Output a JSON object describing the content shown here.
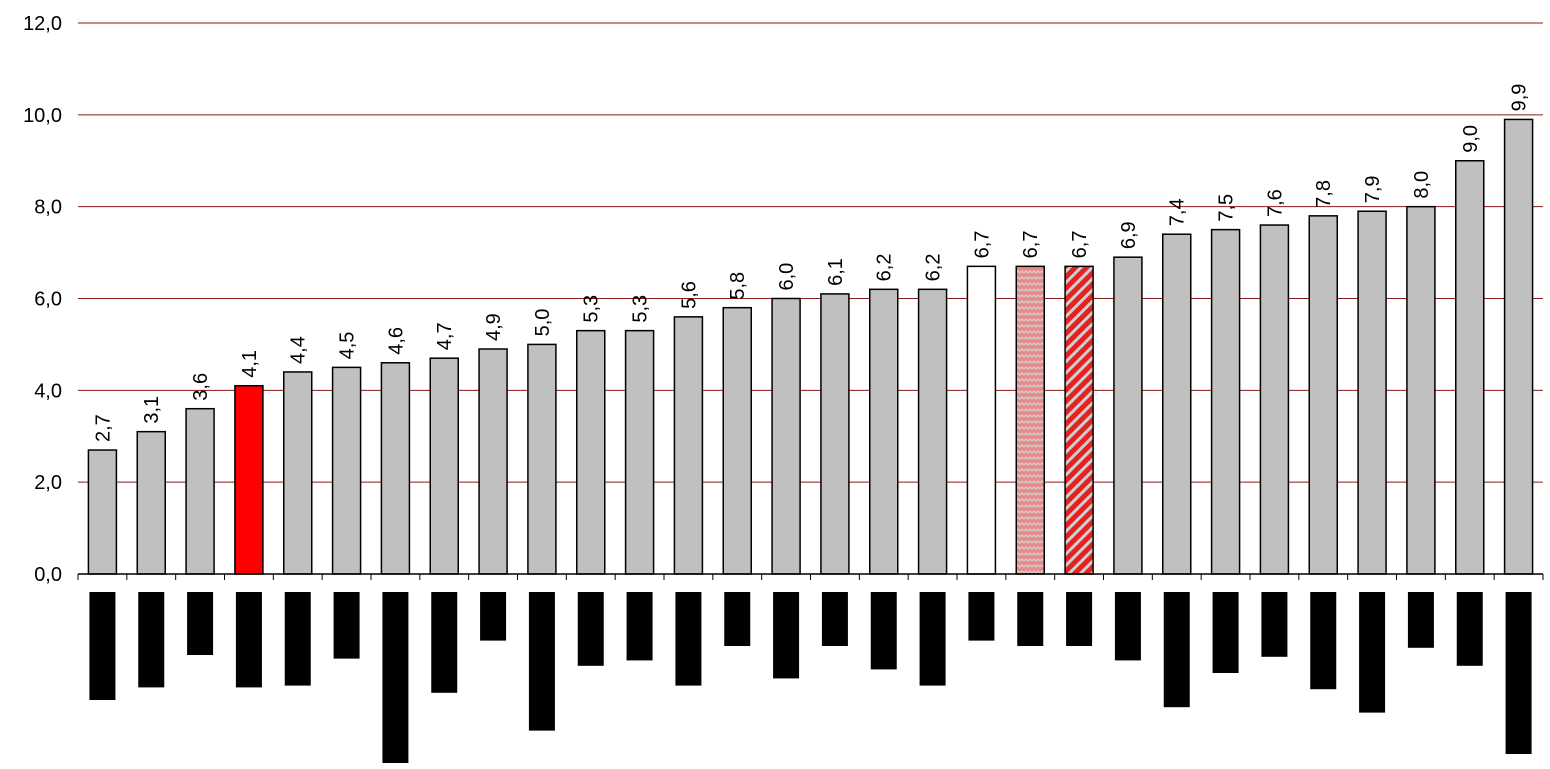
{
  "chart_data": {
    "type": "bar",
    "title": "",
    "xlabel": "",
    "ylabel": "",
    "ylim": [
      0,
      12
    ],
    "y_ticks": [
      0,
      2,
      4,
      6,
      8,
      10,
      12
    ],
    "y_tick_labels": [
      "0,0",
      "2,0",
      "4,0",
      "6,0",
      "8,0",
      "10,0",
      "12,0"
    ],
    "grid": true,
    "colors": {
      "default": "#c0c0c0",
      "red": "#ff0000",
      "white": "#ffffff",
      "hatch_red": "#e32222",
      "hatch_light": "#cfcfcf",
      "grid": "#8b1a1a",
      "outline": "#000000",
      "dark_block": "#000000"
    },
    "values": [
      2.7,
      3.1,
      3.6,
      4.1,
      4.4,
      4.5,
      4.6,
      4.7,
      4.9,
      5.0,
      5.3,
      5.3,
      5.6,
      5.8,
      6.0,
      6.1,
      6.2,
      6.2,
      6.7,
      6.7,
      6.7,
      6.9,
      7.4,
      7.5,
      7.6,
      7.8,
      7.9,
      8.0,
      9.0,
      9.9
    ],
    "data_labels": [
      "2,7",
      "3,1",
      "3,6",
      "4,1",
      "4,4",
      "4,5",
      "4,6",
      "4,7",
      "4,9",
      "5,0",
      "5,3",
      "5,3",
      "5,6",
      "5,8",
      "6,0",
      "6,1",
      "6,2",
      "6,2",
      "6,7",
      "6,7",
      "6,7",
      "6,9",
      "7,4",
      "7,5",
      "7,6",
      "7,8",
      "7,9",
      "8,0",
      "9,0",
      "9,9"
    ],
    "bar_styles": [
      "default",
      "default",
      "default",
      "red",
      "default",
      "default",
      "default",
      "default",
      "default",
      "default",
      "default",
      "default",
      "default",
      "default",
      "default",
      "default",
      "default",
      "default",
      "white",
      "wave-hatch",
      "diagonal-hatch",
      "default",
      "default",
      "default",
      "default",
      "default",
      "default",
      "default",
      "default",
      "default"
    ],
    "below_axis_blocks": [
      0.6,
      0.53,
      0.35,
      0.53,
      0.52,
      0.37,
      0.95,
      0.56,
      0.27,
      0.77,
      0.41,
      0.38,
      0.52,
      0.3,
      0.48,
      0.3,
      0.43,
      0.52,
      0.27,
      0.3,
      0.3,
      0.38,
      0.64,
      0.45,
      0.36,
      0.54,
      0.67,
      0.31,
      0.41,
      0.9
    ]
  }
}
